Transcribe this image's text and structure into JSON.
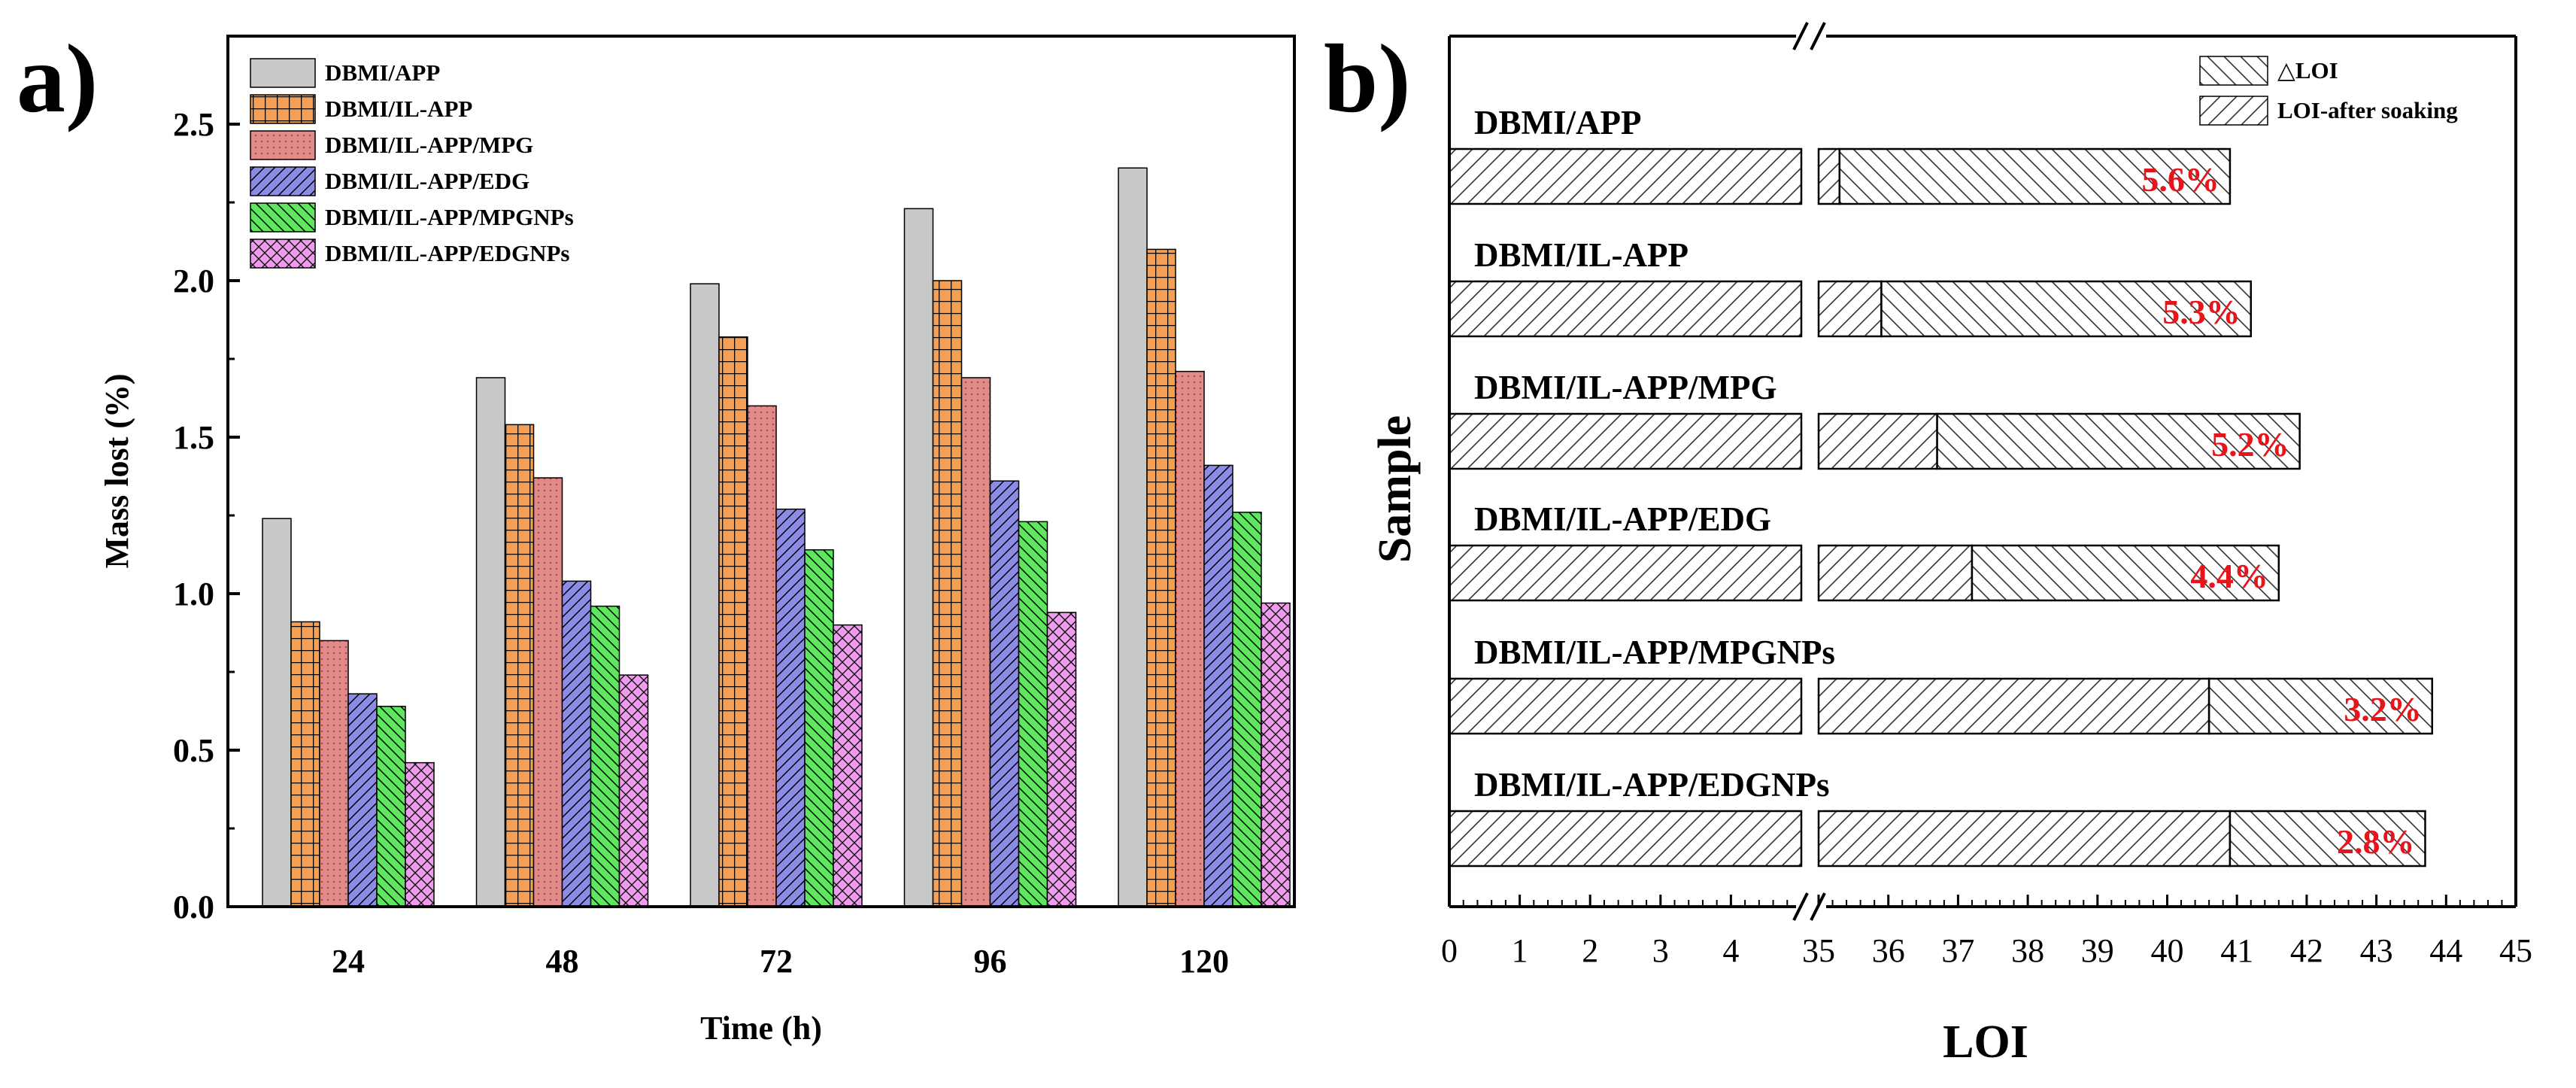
{
  "panel_a": {
    "letter": "a)",
    "chart_data": {
      "type": "bar",
      "title": "",
      "xlabel": "Time (h)",
      "ylabel": "Mass lost (%)",
      "ylim": [
        0.0,
        2.75
      ],
      "yticks": [
        "0.0",
        "0.5",
        "1.0",
        "1.5",
        "2.0",
        "2.5"
      ],
      "categories": [
        "24",
        "48",
        "72",
        "96",
        "120"
      ],
      "legend_position": "top-left",
      "series": [
        {
          "name": "DBMI/APP",
          "color": "#c8c8c8",
          "pattern": "solid",
          "values": [
            1.24,
            1.69,
            1.99,
            2.23,
            2.36
          ]
        },
        {
          "name": "DBMI/IL-APP",
          "color": "#f5a050",
          "pattern": "grid",
          "values": [
            0.91,
            1.54,
            1.82,
            2.0,
            2.1
          ]
        },
        {
          "name": "DBMI/IL-APP/MPG",
          "color": "#e08a8a",
          "pattern": "dots",
          "values": [
            0.85,
            1.37,
            1.6,
            1.69,
            1.71
          ]
        },
        {
          "name": "DBMI/IL-APP/EDG",
          "color": "#8c8ce6",
          "pattern": "diag",
          "values": [
            0.68,
            1.04,
            1.27,
            1.36,
            1.41
          ]
        },
        {
          "name": "DBMI/IL-APP/MPGNPs",
          "color": "#5ee65e",
          "pattern": "diag",
          "values": [
            0.64,
            0.96,
            1.14,
            1.23,
            1.26
          ]
        },
        {
          "name": "DBMI/IL-APP/EDGNPs",
          "color": "#ee9cee",
          "pattern": "cross",
          "values": [
            0.46,
            0.74,
            0.9,
            0.94,
            0.97
          ]
        }
      ]
    }
  },
  "panel_b": {
    "letter": "b)",
    "chart_data": {
      "type": "bar",
      "orientation": "horizontal",
      "title": "",
      "xlabel": "LOI",
      "ylabel": "Sample",
      "axis_break": {
        "lower_segment": [
          0,
          5
        ],
        "upper_segment": [
          35,
          45
        ]
      },
      "xticks": [
        "0",
        "1",
        "2",
        "3",
        "4",
        "35",
        "36",
        "37",
        "38",
        "39",
        "40",
        "41",
        "42",
        "43",
        "44",
        "45"
      ],
      "legend_position": "top-right",
      "legend": [
        "△LOI",
        "LOI-after soaking"
      ],
      "categories": [
        "DBMI/APP",
        "DBMI/IL-APP",
        "DBMI/IL-APP/MPG",
        "DBMI/IL-APP/EDG",
        "DBMI/IL-APP/MPGNPs",
        "DBMI/IL-APP/EDGNPs"
      ],
      "series": [
        {
          "name": "LOI-after soaking",
          "values": [
            35.3,
            35.9,
            36.7,
            37.2,
            40.6,
            40.9
          ]
        },
        {
          "name": "△LOI",
          "values": [
            5.6,
            5.3,
            5.2,
            4.4,
            3.2,
            2.8
          ]
        }
      ],
      "data_labels": [
        "5.6%",
        "5.3%",
        "5.2%",
        "4.4%",
        "3.2%",
        "2.8%"
      ]
    }
  }
}
